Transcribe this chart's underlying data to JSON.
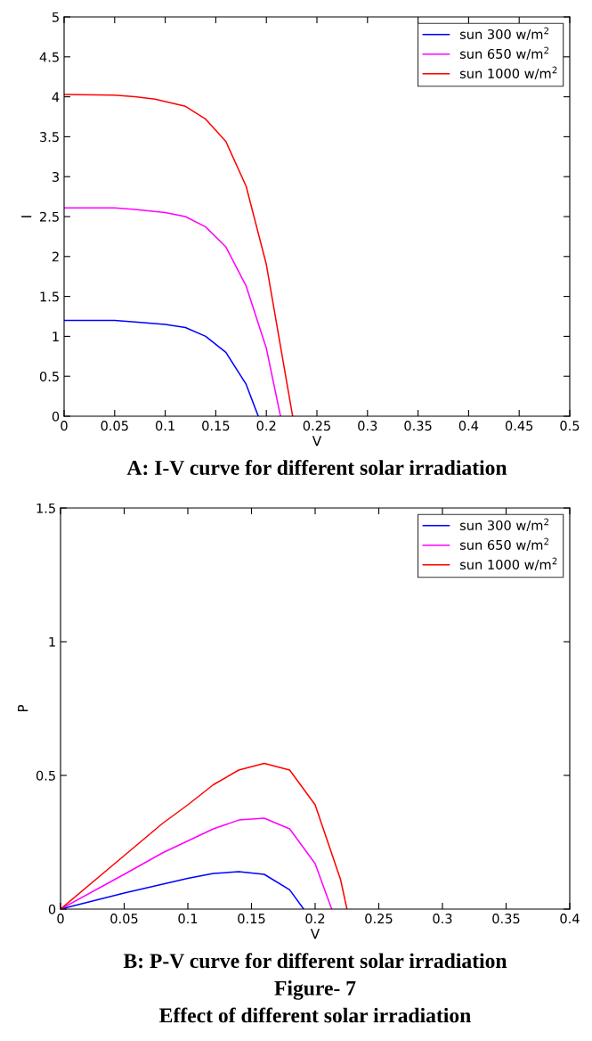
{
  "chart_data": [
    {
      "type": "line",
      "title": "A: I-V curve for different solar irradiation",
      "xlabel": "V",
      "ylabel": "I",
      "xlim": [
        0,
        0.5
      ],
      "ylim": [
        0,
        5
      ],
      "xticks": [
        0,
        0.05,
        0.1,
        0.15,
        0.2,
        0.25,
        0.3,
        0.35,
        0.4,
        0.45,
        0.5
      ],
      "yticks": [
        0,
        0.5,
        1,
        1.5,
        2,
        2.5,
        3,
        3.5,
        4,
        4.5,
        5
      ],
      "legend": "top right",
      "grid": false,
      "marker": "none",
      "line_style": "solid",
      "series": [
        {
          "name": "sun 300 w/m$^{2}$",
          "color": "#0000ff",
          "x": [
            0,
            0.05,
            0.07,
            0.1,
            0.12,
            0.14,
            0.16,
            0.18,
            0.192
          ],
          "values": [
            1.2,
            1.2,
            1.18,
            1.15,
            1.11,
            1.0,
            0.8,
            0.4,
            0
          ]
        },
        {
          "name": "sun 650 w/m$^{2}$",
          "color": "#ff00ff",
          "x": [
            0,
            0.05,
            0.07,
            0.1,
            0.12,
            0.14,
            0.16,
            0.18,
            0.2,
            0.214
          ],
          "values": [
            2.61,
            2.61,
            2.59,
            2.55,
            2.5,
            2.37,
            2.12,
            1.63,
            0.85,
            0
          ]
        },
        {
          "name": "sun 1000 w/m$^{2}$",
          "color": "#ff0000",
          "x": [
            0,
            0.05,
            0.07,
            0.09,
            0.12,
            0.14,
            0.16,
            0.18,
            0.2,
            0.226
          ],
          "values": [
            4.03,
            4.02,
            4.0,
            3.97,
            3.88,
            3.72,
            3.44,
            2.88,
            1.9,
            0
          ]
        }
      ]
    },
    {
      "type": "line",
      "title": "B: P-V curve for different solar irradiation",
      "xlabel": "V",
      "ylabel": "P",
      "xlim": [
        0,
        0.4
      ],
      "ylim": [
        0,
        1.5
      ],
      "xticks": [
        0,
        0.05,
        0.1,
        0.15,
        0.2,
        0.25,
        0.3,
        0.35,
        0.4
      ],
      "yticks": [
        0,
        0.5,
        1,
        1.5
      ],
      "legend": "top right",
      "grid": false,
      "marker": "none",
      "line_style": "solid",
      "annotations": [
        "Figure- 7",
        "Effect of different solar irradiation"
      ],
      "series": [
        {
          "name": "sun 300 w/m$^{2}$",
          "color": "#0000ff",
          "x": [
            0,
            0.05,
            0.1,
            0.12,
            0.14,
            0.16,
            0.18,
            0.191
          ],
          "values": [
            0,
            0.06,
            0.115,
            0.133,
            0.14,
            0.13,
            0.072,
            0
          ]
        },
        {
          "name": "sun 650 w/m$^{2}$",
          "color": "#ff00ff",
          "x": [
            0,
            0.05,
            0.08,
            0.1,
            0.12,
            0.14,
            0.16,
            0.18,
            0.2,
            0.213
          ],
          "values": [
            0,
            0.13,
            0.21,
            0.255,
            0.3,
            0.333,
            0.34,
            0.3,
            0.17,
            0
          ]
        },
        {
          "name": "sun 1000 w/m$^{2}$",
          "color": "#ff0000",
          "x": [
            0,
            0.05,
            0.08,
            0.1,
            0.12,
            0.14,
            0.16,
            0.18,
            0.2,
            0.22,
            0.225
          ],
          "values": [
            0,
            0.2,
            0.32,
            0.39,
            0.465,
            0.52,
            0.545,
            0.52,
            0.39,
            0.11,
            0
          ]
        }
      ]
    }
  ]
}
